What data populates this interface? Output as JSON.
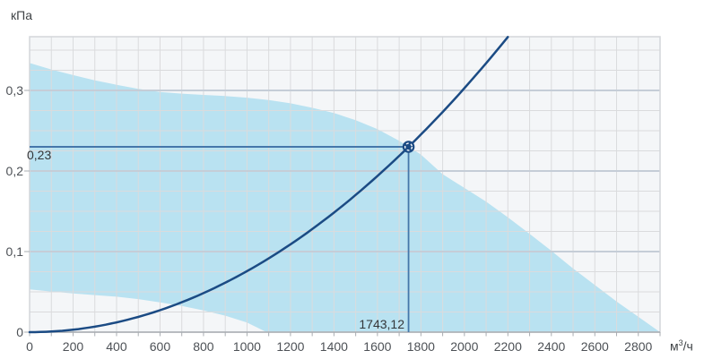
{
  "chart_data": {
    "type": "area",
    "title": "",
    "ylabel": "кПа",
    "x_unit": {
      "pre": "м",
      "sup": "3",
      "post": "/ч"
    },
    "xlim": [
      0,
      2900
    ],
    "ylim": [
      0,
      0.36667
    ],
    "grid": {
      "x_minor_step": 100,
      "y_minor_step": 0.025,
      "y_major_step": 0.1,
      "grid_on": true
    },
    "x_tick_values": [
      0,
      200,
      400,
      600,
      800,
      1000,
      1200,
      1400,
      1600,
      1800,
      2000,
      2200,
      2400,
      2600,
      2800
    ],
    "x_tick_labels": [
      "0",
      "200",
      "400",
      "600",
      "800",
      "1000",
      "1200",
      "1400",
      "1600",
      "1800",
      "2000",
      "2200",
      "2400",
      "2600",
      "2800"
    ],
    "y_tick_values": [
      0,
      0.1,
      0.2,
      0.3
    ],
    "y_tick_labels": [
      "0",
      "0,1",
      "0,2",
      "0,3"
    ],
    "series": [
      {
        "name": "fan-operating-envelope",
        "type": "area-band",
        "upper": [
          [
            0,
            0.334
          ],
          [
            100,
            0.326
          ],
          [
            200,
            0.319
          ],
          [
            300,
            0.3125
          ],
          [
            400,
            0.307
          ],
          [
            500,
            0.302
          ],
          [
            600,
            0.298
          ],
          [
            700,
            0.296
          ],
          [
            800,
            0.2945
          ],
          [
            900,
            0.293
          ],
          [
            1000,
            0.291
          ],
          [
            1100,
            0.288
          ],
          [
            1200,
            0.284
          ],
          [
            1300,
            0.2785
          ],
          [
            1400,
            0.272
          ],
          [
            1500,
            0.263
          ],
          [
            1600,
            0.252
          ],
          [
            1700,
            0.2375
          ],
          [
            1800,
            0.2205
          ],
          [
            1900,
            0.196
          ],
          [
            2000,
            0.179
          ],
          [
            2100,
            0.162
          ],
          [
            2200,
            0.1425
          ],
          [
            2300,
            0.122
          ],
          [
            2400,
            0.101
          ],
          [
            2500,
            0.079
          ],
          [
            2600,
            0.0585
          ],
          [
            2700,
            0.038
          ],
          [
            2800,
            0.019
          ],
          [
            2900,
            0
          ]
        ],
        "lower": [
          [
            0,
            0.053
          ],
          [
            100,
            0.0505
          ],
          [
            200,
            0.048
          ],
          [
            300,
            0.046
          ],
          [
            400,
            0.044
          ],
          [
            500,
            0.041
          ],
          [
            600,
            0.037
          ],
          [
            700,
            0.0325
          ],
          [
            800,
            0.027
          ],
          [
            900,
            0.0205
          ],
          [
            1000,
            0.012
          ],
          [
            1090,
            0
          ]
        ]
      },
      {
        "name": "system-resistance-curve",
        "type": "line",
        "curve": "parabola-through-origin",
        "through_point": [
          1743.12,
          0.23
        ],
        "x_range": [
          0,
          2200
        ]
      }
    ],
    "operating_point": {
      "x": 1743.12,
      "y": 0.23,
      "label_x": "1743,12",
      "label_y": "0,23"
    },
    "colors": {
      "plot_bg": "#f4f6f8",
      "envelope_fill": "#b9e2f1",
      "grid_minor": "#dadbdd",
      "grid_major": "#c5cdd7",
      "border": "#d3d6da",
      "axis": "#a9adb2",
      "curve": "#1b4b84",
      "crosshair": "#4577aa",
      "marker_fill": "#1b4b84",
      "marker_ring": "#ffffff",
      "tick_text": "#4d5156",
      "value_text": "#333639"
    }
  }
}
